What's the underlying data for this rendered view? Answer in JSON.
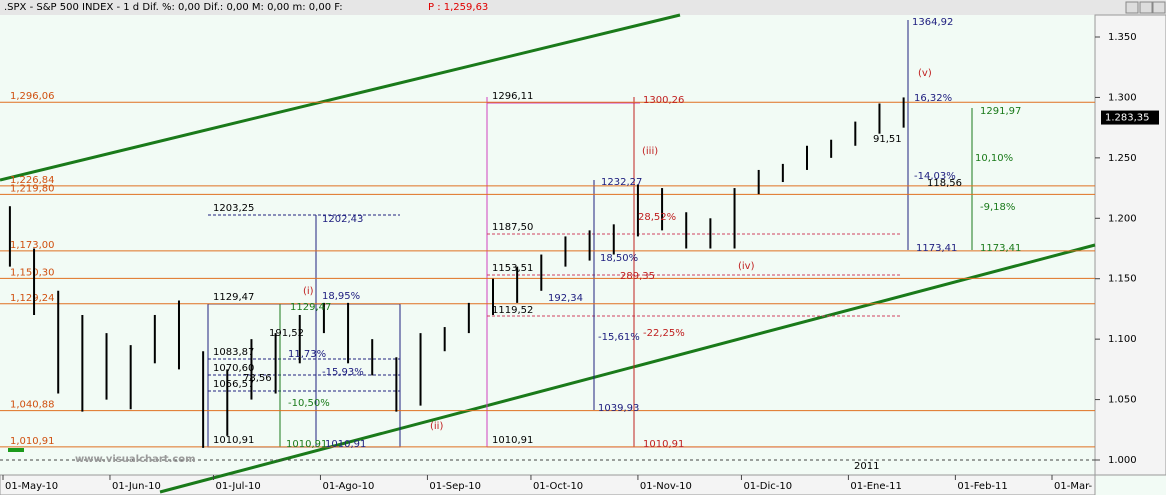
{
  "chart_data": {
    "type": "ohlc",
    "header": ".SPX - S&P 500 INDEX -  1 d Dif. %: 0,00 Dif.: 0,00 M: 0,00 m: 0,00 F:",
    "price_label": "P : 1,259,63",
    "color": "#000000",
    "x": [
      "2010-05-03",
      "2010-05-10",
      "2010-05-17",
      "2010-05-24",
      "2010-05-31",
      "2010-06-07",
      "2010-06-14",
      "2010-06-21",
      "2010-06-28",
      "2010-07-05",
      "2010-07-12",
      "2010-07-19",
      "2010-07-26",
      "2010-08-02",
      "2010-08-09",
      "2010-08-16",
      "2010-08-23",
      "2010-08-30",
      "2010-09-06",
      "2010-09-13",
      "2010-09-20",
      "2010-09-27",
      "2010-10-04",
      "2010-10-11",
      "2010-10-18",
      "2010-10-25",
      "2010-11-01",
      "2010-11-08",
      "2010-11-15",
      "2010-11-22",
      "2010-11-29",
      "2010-12-06",
      "2010-12-13",
      "2010-12-20",
      "2010-12-27",
      "2011-01-03",
      "2011-01-10",
      "2011-01-17"
    ],
    "high": [
      1210,
      1175,
      1140,
      1120,
      1105,
      1095,
      1120,
      1132,
      1090,
      1075,
      1100,
      1105,
      1120,
      1130,
      1130,
      1100,
      1085,
      1105,
      1110,
      1130,
      1150,
      1160,
      1170,
      1185,
      1190,
      1195,
      1228,
      1225,
      1205,
      1200,
      1225,
      1240,
      1245,
      1260,
      1265,
      1280,
      1295,
      1300
    ],
    "low": [
      1160,
      1120,
      1055,
      1040,
      1050,
      1042,
      1080,
      1075,
      1010,
      1020,
      1050,
      1055,
      1080,
      1105,
      1080,
      1070,
      1040,
      1045,
      1090,
      1105,
      1120,
      1130,
      1140,
      1160,
      1165,
      1170,
      1185,
      1190,
      1175,
      1175,
      1175,
      1220,
      1230,
      1240,
      1250,
      1260,
      1270,
      1275
    ],
    "xlim": [
      "2010-05-01",
      "2011-03-01"
    ],
    "xticks": [
      {
        "value": "2010-05-01",
        "label": "01-May-10"
      },
      {
        "value": "2010-06-01",
        "label": "01-Jun-10"
      },
      {
        "value": "2010-07-01",
        "label": "01-Jul-10"
      },
      {
        "value": "2010-08-01",
        "label": "01-Ago-10"
      },
      {
        "value": "2010-09-01",
        "label": "01-Sep-10"
      },
      {
        "value": "2010-10-01",
        "label": "01-Oct-10"
      },
      {
        "value": "2010-11-01",
        "label": "01-Nov-10"
      },
      {
        "value": "2010-12-01",
        "label": "01-Dic-10"
      },
      {
        "value": "2011-01-01",
        "label": "01-Ene-11"
      },
      {
        "value": "2011-02-01",
        "label": "01-Feb-11"
      },
      {
        "value": "2011-03-01",
        "label": "01-Mar-"
      }
    ],
    "ylim": [
      1000,
      1350
    ],
    "yticks": [
      {
        "value": 1000,
        "label": "1.000"
      },
      {
        "value": 1050,
        "label": "1.050"
      },
      {
        "value": 1100,
        "label": "1.100"
      },
      {
        "value": 1150,
        "label": "1.150"
      },
      {
        "value": 1200,
        "label": "1.200"
      },
      {
        "value": 1250,
        "label": "1.250"
      },
      {
        "value": 1300,
        "label": "1.300"
      },
      {
        "value": 1350,
        "label": "1.350"
      }
    ],
    "last": {
      "value": 1283.35,
      "label": "1.283,35"
    },
    "levels": [
      {
        "value": 1296.06,
        "label": "1,296,06"
      },
      {
        "value": 1226.84,
        "label": "1,226,84"
      },
      {
        "value": 1219.8,
        "label": "1,219,80"
      },
      {
        "value": 1173.0,
        "label": "1,173,00"
      },
      {
        "value": 1150.3,
        "label": "1,150,30"
      },
      {
        "value": 1129.24,
        "label": "1,129,24"
      },
      {
        "value": 1040.88,
        "label": "1,040,88"
      },
      {
        "value": 1010.91,
        "label": "1,010,91"
      }
    ],
    "annotations": [
      "1364,92",
      "(v)",
      "1300,26",
      "1296,11",
      "16,32%",
      "1291,97",
      "(iii)",
      "10,10%",
      "91,51",
      "-14,03%",
      "118,56",
      "1232,27",
      "28,52%",
      "-9,18%",
      "1203,25",
      "1202,43",
      "1187,50",
      "1173,41",
      "1173,41",
      "(iv)",
      "18,50%",
      "1153,51",
      "289,35",
      "192,34",
      "(i)",
      "1129,47",
      "18,95%",
      "1129,47",
      "1119,52",
      "191,52",
      "-15,61%",
      "-22,25%",
      "1083,87",
      "11,73%",
      "1070,60",
      "-15,93%",
      "78,56",
      "1056,57",
      "-10,50%",
      "1039,93",
      "(ii)",
      "1010,91",
      "1010,91",
      "1010,91",
      "1010,91",
      "1010,91",
      "www.visualchart.com",
      "2011"
    ]
  }
}
